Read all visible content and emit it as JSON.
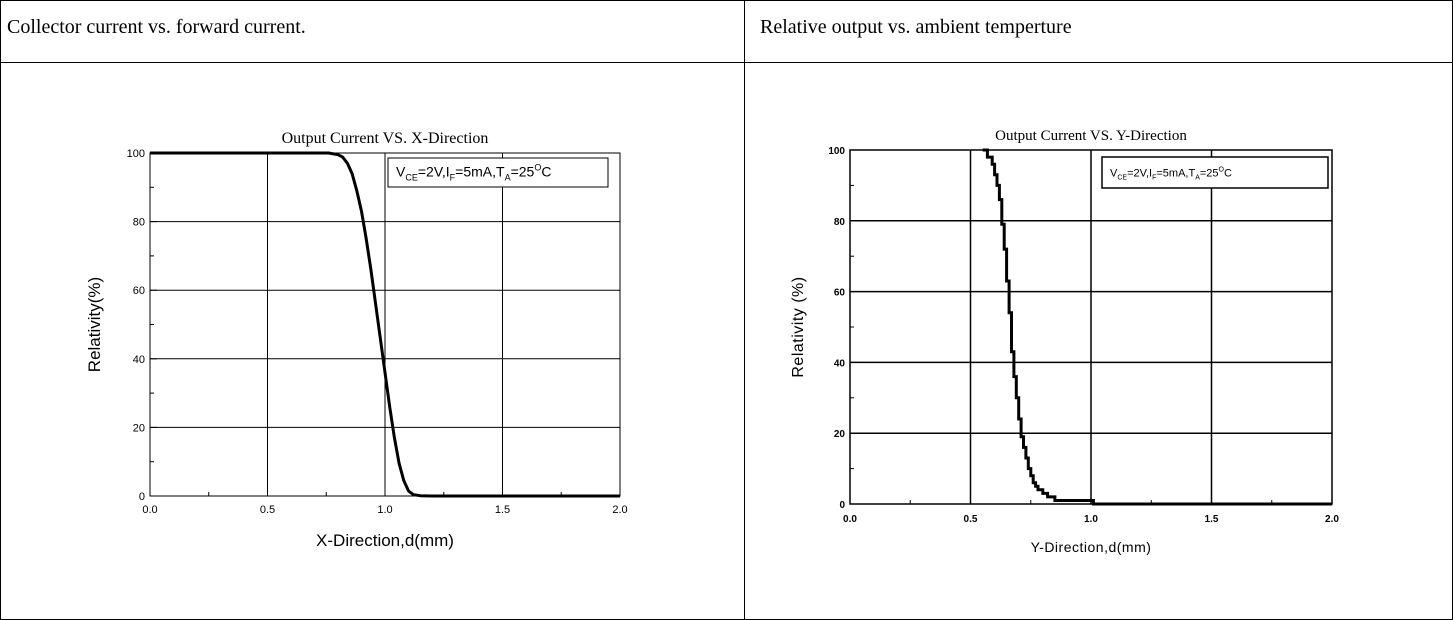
{
  "table": {
    "header_left": "Collector current vs. forward current.",
    "header_right": "Relative output vs. ambient temperture"
  },
  "colors": {
    "line": "#000000",
    "grid": "#000000",
    "background": "#ffffff"
  },
  "chart_data": [
    {
      "type": "line",
      "title": "Output Current VS. X-Direction",
      "xlabel": "X-Direction,d(mm)",
      "ylabel": "Relativity(%)",
      "xlim": [
        0.0,
        2.0
      ],
      "ylim": [
        0,
        100
      ],
      "xticks": [
        "0.0",
        "0.5",
        "1.0",
        "1.5",
        "2.0"
      ],
      "yticks": [
        "0",
        "20",
        "40",
        "60",
        "80",
        "100"
      ],
      "grid": true,
      "legend_placement": "top-right",
      "annotation": {
        "v": "V",
        "v_sub": "CE",
        "v_val": "=2V,",
        "i": "I",
        "i_sub": "F",
        "i_val": "=5mA,",
        "t": "T",
        "t_sub": "A",
        "t_val": "=25",
        "deg": "O",
        "unit": "C"
      },
      "x": [
        0.0,
        0.5,
        0.7,
        0.76,
        0.8,
        0.82,
        0.84,
        0.86,
        0.88,
        0.9,
        0.92,
        0.94,
        0.96,
        0.98,
        1.0,
        1.02,
        1.04,
        1.06,
        1.08,
        1.1,
        1.12,
        1.15,
        1.2,
        1.5,
        2.0
      ],
      "y": [
        100,
        100,
        100,
        100,
        99.5,
        98.8,
        97,
        94,
        89,
        83,
        75,
        66,
        56,
        46,
        36,
        26,
        17,
        9.5,
        4.5,
        1.5,
        0.4,
        0.1,
        0,
        0,
        0
      ]
    },
    {
      "type": "line",
      "title": "Output Current VS. Y-Direction",
      "xlabel": "Y-Direction,d(mm)",
      "ylabel": "Relativity (%)",
      "xlim": [
        0.0,
        2.0
      ],
      "ylim": [
        0,
        100
      ],
      "xticks": [
        "0.0",
        "0.5",
        "1.0",
        "1.5",
        "2.0"
      ],
      "yticks": [
        "0",
        "20",
        "40",
        "60",
        "80",
        "100"
      ],
      "grid": true,
      "legend_placement": "top-right",
      "annotation": {
        "v": "V",
        "v_sub": "CE",
        "v_val": "=2V,",
        "i": "I",
        "i_sub": "F",
        "i_val": "=5mA,",
        "t": "T",
        "t_sub": "A",
        "t_val": "=25",
        "deg": "O",
        "unit": "C"
      },
      "x": [
        0.55,
        0.57,
        0.59,
        0.6,
        0.61,
        0.62,
        0.63,
        0.64,
        0.65,
        0.66,
        0.67,
        0.68,
        0.69,
        0.7,
        0.71,
        0.72,
        0.73,
        0.74,
        0.75,
        0.76,
        0.77,
        0.78,
        0.8,
        0.82,
        0.85,
        0.9,
        0.95,
        1.0,
        1.01,
        1.2,
        1.6,
        2.0
      ],
      "y": [
        100,
        98,
        96,
        93,
        90,
        86,
        79,
        72,
        63,
        54,
        43,
        36,
        30,
        24,
        19,
        16,
        13,
        10,
        8,
        6,
        5,
        4,
        3,
        2,
        1,
        1,
        1,
        1,
        0,
        0,
        0,
        0
      ]
    }
  ]
}
